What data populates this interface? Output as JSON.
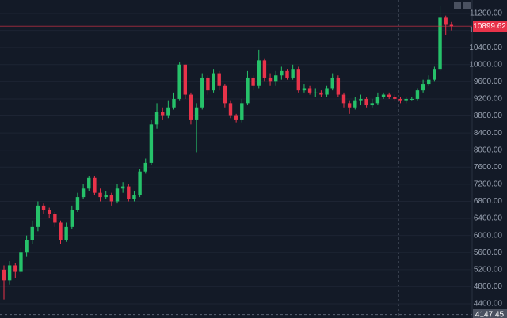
{
  "chart_data": {
    "type": "candlestick",
    "ylim": [
      4067,
      11515
    ],
    "yticks": [
      {
        "value": 4400,
        "label": "4400.00"
      },
      {
        "value": 4800,
        "label": "4800.00"
      },
      {
        "value": 5200,
        "label": "5200.00"
      },
      {
        "value": 5600,
        "label": "5600.00"
      },
      {
        "value": 6000,
        "label": "6000.00"
      },
      {
        "value": 6400,
        "label": "6400.00"
      },
      {
        "value": 6800,
        "label": "6800.00"
      },
      {
        "value": 7200,
        "label": "7200.00"
      },
      {
        "value": 7600,
        "label": "7600.00"
      },
      {
        "value": 8000,
        "label": "8000.00"
      },
      {
        "value": 8400,
        "label": "8400.00"
      },
      {
        "value": 8800,
        "label": "8800.00"
      },
      {
        "value": 9200,
        "label": "9200.00"
      },
      {
        "value": 9600,
        "label": "9600.00"
      },
      {
        "value": 10000,
        "label": "10000.00"
      },
      {
        "value": 10400,
        "label": "10400.00"
      },
      {
        "value": 10800,
        "label": "10800.00"
      },
      {
        "value": 11200,
        "label": "11200.00"
      }
    ],
    "grid": true,
    "up_color": "#26c26a",
    "down_color": "#e8334a",
    "open": [
      5200,
      4950,
      5300,
      5150,
      5600,
      5900,
      6200,
      6700,
      6600,
      6500,
      6300,
      5900,
      6200,
      6600,
      6900,
      7100,
      7350,
      7000,
      6900,
      6950,
      6800,
      7100,
      7150,
      6850,
      6950,
      7500,
      7700,
      8600,
      8900,
      8800,
      9000,
      9200,
      10000,
      9300,
      8700,
      9000,
      9700,
      9400,
      9800,
      9500,
      9100,
      8800,
      8700,
      9100,
      9700,
      9500,
      10100,
      9700,
      9600,
      9750,
      9850,
      9700,
      9900,
      9400,
      9450,
      9350,
      9350,
      9300,
      9450,
      9700,
      9300,
      9100,
      9000,
      9150,
      9200,
      9050,
      9100,
      9250,
      9300,
      9250,
      9200,
      9150,
      9200,
      9200,
      9400,
      9550,
      9650,
      9900,
      11100,
      10950
    ],
    "high": [
      5300,
      5400,
      5350,
      5700,
      6000,
      6350,
      6800,
      6750,
      6650,
      6550,
      6350,
      6300,
      6700,
      7000,
      7200,
      7400,
      7400,
      7100,
      7050,
      7000,
      7200,
      7250,
      7200,
      7050,
      7550,
      7800,
      8700,
      9100,
      9000,
      9150,
      9350,
      10050,
      10000,
      9350,
      9100,
      9800,
      9750,
      9900,
      9850,
      9550,
      9150,
      8850,
      9200,
      9850,
      9750,
      10350,
      10150,
      9800,
      9850,
      9950,
      9900,
      10000,
      9950,
      9550,
      9500,
      9450,
      9400,
      9500,
      9800,
      9750,
      9350,
      9150,
      9250,
      9300,
      9250,
      9200,
      9350,
      9350,
      9350,
      9300,
      9250,
      9250,
      9250,
      9450,
      9650,
      9750,
      9950,
      11380,
      11150,
      11000
    ],
    "low": [
      4500,
      4850,
      5000,
      5100,
      5500,
      5800,
      6100,
      6500,
      6400,
      6200,
      5800,
      5850,
      6150,
      6550,
      6850,
      7050,
      6950,
      6800,
      6850,
      6700,
      6750,
      7000,
      6800,
      6800,
      6900,
      7450,
      7650,
      8500,
      8700,
      8750,
      8950,
      9150,
      9200,
      8600,
      7950,
      8950,
      9300,
      9350,
      9400,
      9000,
      8750,
      8650,
      8650,
      9050,
      9400,
      9450,
      9600,
      9500,
      9500,
      9650,
      9650,
      9650,
      9350,
      9350,
      9300,
      9250,
      9250,
      9250,
      9400,
      9250,
      9000,
      8850,
      8950,
      9050,
      9000,
      9000,
      9050,
      9200,
      9200,
      9150,
      9100,
      9100,
      9150,
      9150,
      9350,
      9500,
      9600,
      9850,
      10700,
      10800
    ],
    "close": [
      4950,
      5300,
      5150,
      5600,
      5900,
      6200,
      6700,
      6600,
      6500,
      6300,
      5900,
      6200,
      6600,
      6900,
      7100,
      7350,
      7000,
      6900,
      6950,
      6800,
      7100,
      7150,
      6850,
      6950,
      7500,
      7700,
      8600,
      8900,
      8800,
      9000,
      9200,
      10000,
      9300,
      8700,
      9000,
      9700,
      9400,
      9800,
      9500,
      9100,
      8800,
      8700,
      9100,
      9700,
      9500,
      10100,
      9700,
      9600,
      9750,
      9850,
      9700,
      9900,
      9400,
      9450,
      9350,
      9350,
      9300,
      9450,
      9700,
      9300,
      9100,
      9000,
      9150,
      9200,
      9050,
      9100,
      9250,
      9300,
      9250,
      9200,
      9150,
      9200,
      9200,
      9400,
      9550,
      9650,
      9900,
      11100,
      10950,
      10899.62
    ],
    "current_price": 10899.62,
    "crosshair_price": 4147.45
  }
}
